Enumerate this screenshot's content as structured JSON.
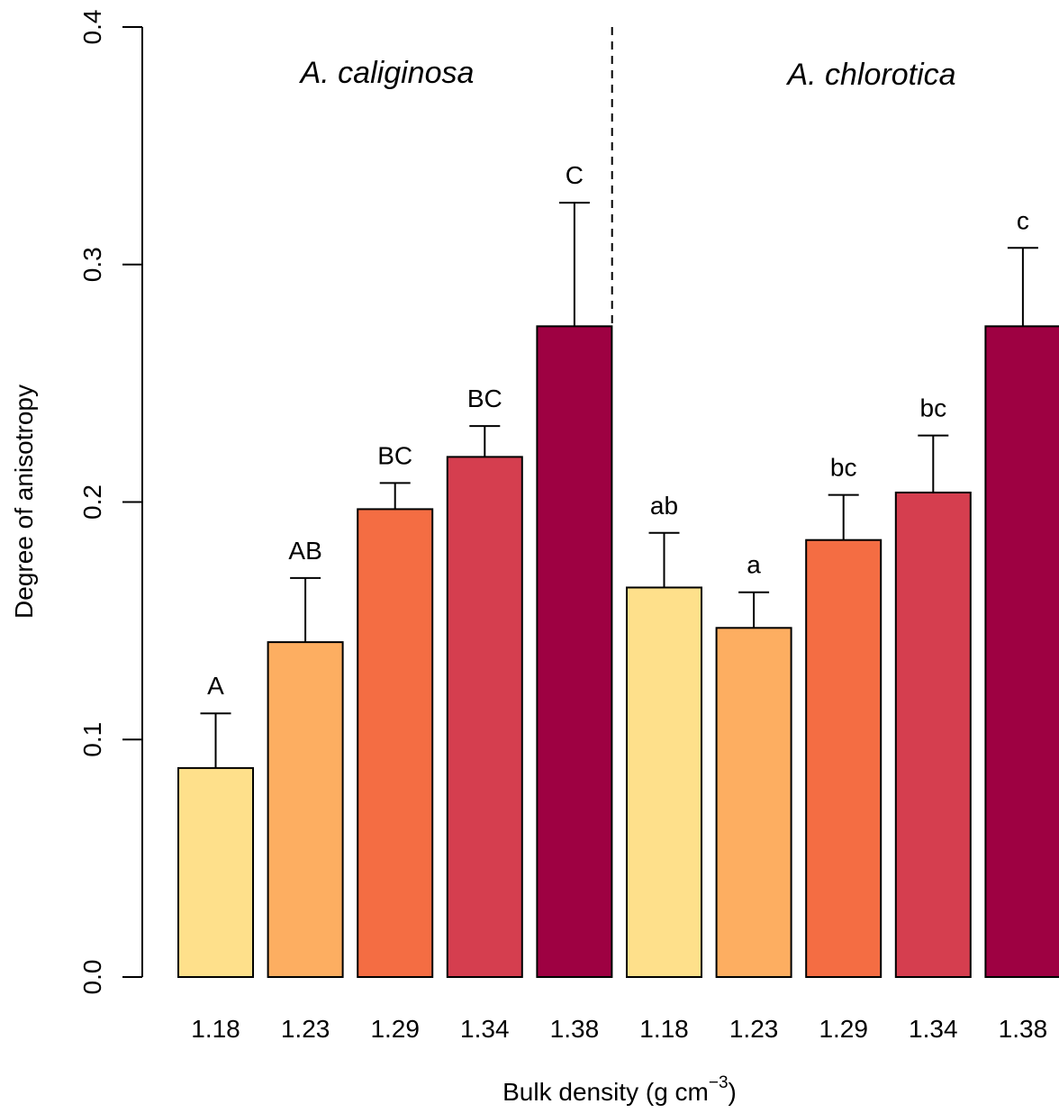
{
  "chart_data": {
    "type": "bar",
    "xlabel": "Bulk density (g cm",
    "xlabel_sup": "−3",
    "xlabel_end": ")",
    "ylabel": "Degree of anisotropy",
    "ylim": [
      0,
      0.4
    ],
    "yticks": [
      "0.0",
      "0.1",
      "0.2",
      "0.3",
      "0.4"
    ],
    "ytick_values": [
      0,
      0.1,
      0.2,
      0.3,
      0.4
    ],
    "grid": false,
    "error_bars": "upper only",
    "divider": "dashed vertical line between groups",
    "groups": [
      {
        "name": "A. caliginosa",
        "categories": [
          "1.18",
          "1.23",
          "1.29",
          "1.34",
          "1.38"
        ],
        "values": [
          0.088,
          0.141,
          0.197,
          0.219,
          0.274
        ],
        "errors_upper": [
          0.111,
          0.168,
          0.208,
          0.232,
          0.326
        ],
        "letters": [
          "A",
          "AB",
          "BC",
          "BC",
          "C"
        ]
      },
      {
        "name": "A. chlorotica",
        "categories": [
          "1.18",
          "1.23",
          "1.29",
          "1.34",
          "1.38"
        ],
        "values": [
          0.164,
          0.147,
          0.184,
          0.204,
          0.274
        ],
        "errors_upper": [
          0.187,
          0.162,
          0.203,
          0.228,
          0.307
        ],
        "letters": [
          "ab",
          "a",
          "bc",
          "bc",
          "c"
        ]
      }
    ],
    "colors": [
      "#FEE08B",
      "#FDAE61",
      "#F46D43",
      "#D53E4F",
      "#9E0142"
    ]
  }
}
